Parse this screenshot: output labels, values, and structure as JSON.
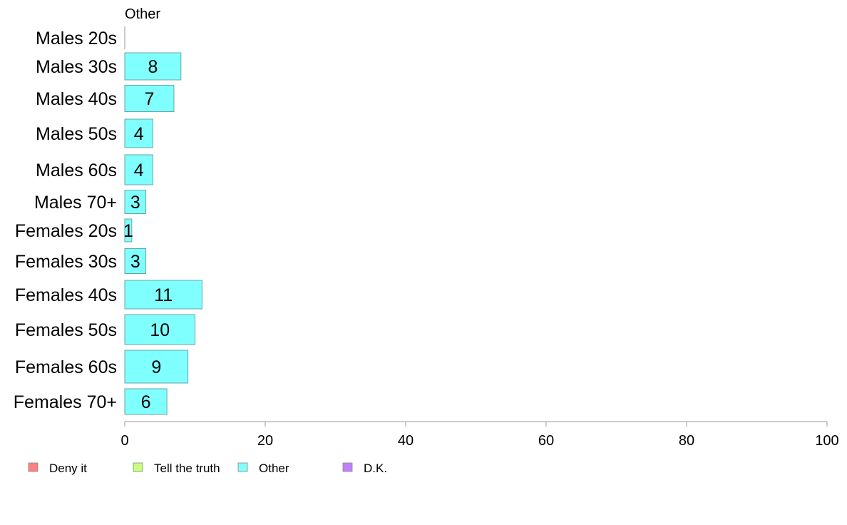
{
  "chart_data": {
    "type": "bar",
    "orientation": "horizontal",
    "title": "Other",
    "categories": [
      "Males 20s",
      "Males 30s",
      "Males 40s",
      "Males 50s",
      "Males 60s",
      "Males 70+",
      "Females 20s",
      "Females 30s",
      "Females 40s",
      "Females 50s",
      "Females 60s",
      "Females 70+"
    ],
    "values": [
      0,
      8,
      7,
      4,
      4,
      3,
      1,
      3,
      11,
      10,
      9,
      6
    ],
    "value_labels": [
      "",
      "8",
      "7",
      "4",
      "4",
      "3",
      "1",
      "3",
      "11",
      "10",
      "9",
      "6"
    ],
    "xlim": [
      0,
      100
    ],
    "xticks": [
      0,
      20,
      40,
      60,
      80,
      100
    ],
    "grid": false,
    "bar_color": "#80ffff",
    "bar_edge_color": "#6aa6a6",
    "legend": {
      "position": "bottom-left",
      "items": [
        {
          "label": "Deny it",
          "color": "#ff8080"
        },
        {
          "label": "Tell the truth",
          "color": "#c6ff80"
        },
        {
          "label": "Other",
          "color": "#80ffff"
        },
        {
          "label": "D.K.",
          "color": "#c080ff"
        }
      ]
    }
  }
}
